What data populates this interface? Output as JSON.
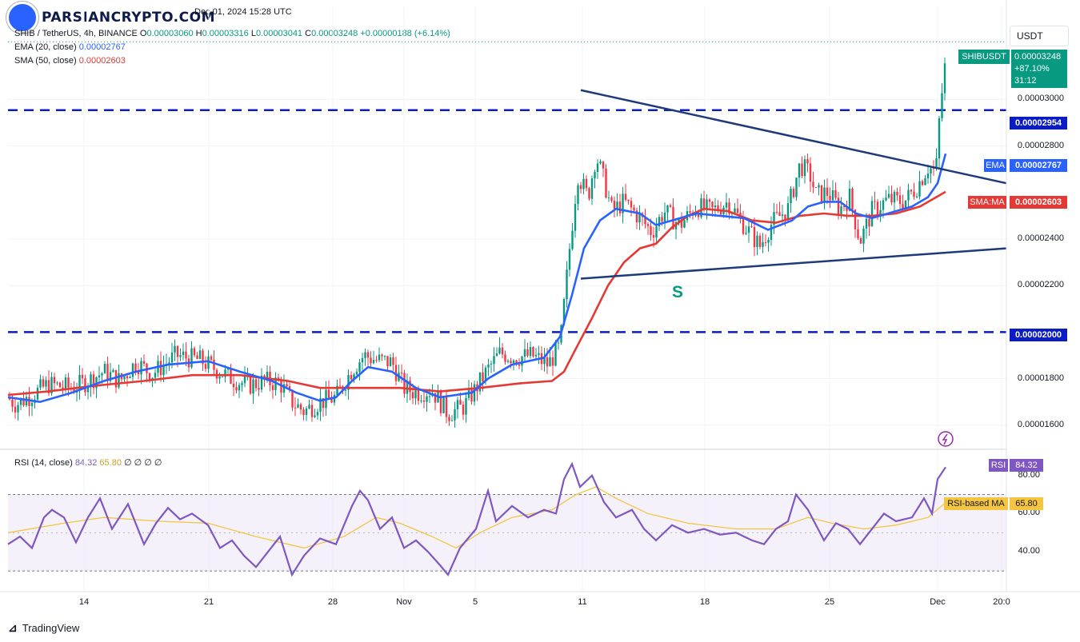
{
  "watermark": {
    "brand": "PARSIANCRYPTO.COM",
    "date": "Dec 01, 2024 15:28 UTC"
  },
  "legend": {
    "symbol": "SHIB / TetherUS, 4h, BINANCE",
    "o_label": "O",
    "o_value": "0.00003060",
    "h_label": "H",
    "h_value": "0.00003316",
    "l_label": "L",
    "l_value": "0.00003041",
    "c_label": "C",
    "c_value": "0.00003248",
    "change": "+0.00000188 (+6.14%)",
    "ema_label": "EMA (20, close)",
    "ema_value": "0.00002767",
    "sma_label": "SMA (50, close)",
    "sma_value": "0.00002603",
    "rsi_label": "RSI (14, close)",
    "rsi_value": "84.32",
    "rsi_ma_value": "65.80",
    "rsi_extra": "∅ ∅ ∅ ∅"
  },
  "currency_button": "USDT",
  "price_box": {
    "symbol": "SHIBUSDT",
    "price": "0.00003248",
    "change": "+87.10%",
    "countdown": "31:12"
  },
  "level_labels": {
    "resistance": "0.00002954",
    "support": "0.00002000"
  },
  "ema_tag": {
    "label": "EMA",
    "value": "0.00002767"
  },
  "sma_tag": {
    "label": "SMA:MA",
    "value": "0.00002603"
  },
  "rsi_tag": {
    "label": "RSI",
    "value": "84.32"
  },
  "rsi_ma_tag": {
    "label": "RSI-based MA",
    "value": "65.80"
  },
  "annotation": "S",
  "footer": "TradingView",
  "colors": {
    "up": "#089981",
    "down": "#f23645",
    "ema": "#2962ff",
    "sma": "#e53935",
    "rsi": "#7e57c2",
    "rsi_ma": "#f5c542",
    "level": "#0a1cc2",
    "trend": "#1f3a7a"
  },
  "chart_data": {
    "type": "candlestick",
    "x_ticks": [
      "14",
      "21",
      "28",
      "Nov",
      "5",
      "11",
      "18",
      "25",
      "Dec",
      "20:0"
    ],
    "y_ticks": [
      "0.00003000",
      "0.00002800",
      "0.00002400",
      "0.00002200",
      "0.00001800",
      "0.00001600"
    ],
    "rsi_ticks": [
      "80.00",
      "60.00",
      "40.00"
    ],
    "ylim": [
      1.51e-05,
      3.4e-05
    ],
    "rsi_ylim": [
      20,
      92
    ],
    "horizontal_levels": [
      2.954e-05,
      2e-05
    ],
    "rsi_band": [
      70,
      30
    ],
    "close_path": [
      [
        0,
        1.745e-05
      ],
      [
        20,
        1.69e-05
      ],
      [
        40,
        1.73e-05
      ],
      [
        60,
        1.775e-05
      ],
      [
        90,
        1.76e-05
      ],
      [
        110,
        1.79e-05
      ],
      [
        130,
        1.83e-05
      ],
      [
        150,
        1.79e-05
      ],
      [
        170,
        1.87e-05
      ],
      [
        190,
        1.82e-05
      ],
      [
        220,
        1.9e-05
      ],
      [
        250,
        1.88e-05
      ],
      [
        270,
        1.84e-05
      ],
      [
        290,
        1.8e-05
      ],
      [
        310,
        1.77e-05
      ],
      [
        330,
        1.79e-05
      ],
      [
        350,
        1.78e-05
      ],
      [
        365,
        1.7e-05
      ],
      [
        380,
        1.66e-05
      ],
      [
        400,
        1.7e-05
      ],
      [
        420,
        1.72e-05
      ],
      [
        440,
        1.84e-05
      ],
      [
        455,
        1.9e-05
      ],
      [
        470,
        1.88e-05
      ],
      [
        490,
        1.87e-05
      ],
      [
        505,
        1.76e-05
      ],
      [
        520,
        1.74e-05
      ],
      [
        540,
        1.75e-05
      ],
      [
        560,
        1.65e-05
      ],
      [
        580,
        1.68e-05
      ],
      [
        595,
        1.76e-05
      ],
      [
        610,
        1.84e-05
      ],
      [
        625,
        1.91e-05
      ],
      [
        645,
        1.89e-05
      ],
      [
        665,
        1.9e-05
      ],
      [
        685,
        1.86e-05
      ],
      [
        700,
        1.94e-05
      ],
      [
        712,
        2.36e-05
      ],
      [
        722,
        2.68e-05
      ],
      [
        735,
        2.58e-05
      ],
      [
        745,
        2.76e-05
      ],
      [
        755,
        2.65e-05
      ],
      [
        765,
        2.52e-05
      ],
      [
        780,
        2.56e-05
      ],
      [
        800,
        2.49e-05
      ],
      [
        815,
        2.43e-05
      ],
      [
        830,
        2.52e-05
      ],
      [
        850,
        2.46e-05
      ],
      [
        870,
        2.54e-05
      ],
      [
        890,
        2.52e-05
      ],
      [
        910,
        2.56e-05
      ],
      [
        930,
        2.46e-05
      ],
      [
        950,
        2.37e-05
      ],
      [
        965,
        2.47e-05
      ],
      [
        985,
        2.53e-05
      ],
      [
        1000,
        2.72e-05
      ],
      [
        1012,
        2.68e-05
      ],
      [
        1020,
        2.59e-05
      ],
      [
        1035,
        2.6e-05
      ],
      [
        1050,
        2.53e-05
      ],
      [
        1062,
        2.58e-05
      ],
      [
        1075,
        2.39e-05
      ],
      [
        1090,
        2.52e-05
      ],
      [
        1110,
        2.57e-05
      ],
      [
        1130,
        2.56e-05
      ],
      [
        1145,
        2.62e-05
      ],
      [
        1160,
        2.71e-05
      ],
      [
        1170,
        2.69e-05
      ],
      [
        1175,
        2.96e-05
      ],
      [
        1180,
        3.1e-05
      ],
      [
        1184,
        3.248e-05
      ]
    ],
    "ema_path": [
      [
        10,
        1.72e-05
      ],
      [
        50,
        1.7e-05
      ],
      [
        90,
        1.74e-05
      ],
      [
        130,
        1.79e-05
      ],
      [
        170,
        1.83e-05
      ],
      [
        210,
        1.86e-05
      ],
      [
        260,
        1.875e-05
      ],
      [
        300,
        1.83e-05
      ],
      [
        340,
        1.79e-05
      ],
      [
        370,
        1.74e-05
      ],
      [
        400,
        1.705e-05
      ],
      [
        420,
        1.72e-05
      ],
      [
        440,
        1.79e-05
      ],
      [
        460,
        1.85e-05
      ],
      [
        490,
        1.83e-05
      ],
      [
        520,
        1.76e-05
      ],
      [
        550,
        1.72e-05
      ],
      [
        590,
        1.74e-05
      ],
      [
        610,
        1.8e-05
      ],
      [
        640,
        1.86e-05
      ],
      [
        680,
        1.89e-05
      ],
      [
        700,
        1.98e-05
      ],
      [
        715,
        2.16e-05
      ],
      [
        730,
        2.36e-05
      ],
      [
        750,
        2.48e-05
      ],
      [
        770,
        2.53e-05
      ],
      [
        800,
        2.51e-05
      ],
      [
        820,
        2.46e-05
      ],
      [
        840,
        2.48e-05
      ],
      [
        870,
        2.51e-05
      ],
      [
        900,
        2.5e-05
      ],
      [
        930,
        2.49e-05
      ],
      [
        960,
        2.44e-05
      ],
      [
        990,
        2.48e-05
      ],
      [
        1010,
        2.54e-05
      ],
      [
        1030,
        2.56e-05
      ],
      [
        1050,
        2.56e-05
      ],
      [
        1070,
        2.51e-05
      ],
      [
        1090,
        2.49e-05
      ],
      [
        1110,
        2.51e-05
      ],
      [
        1140,
        2.54e-05
      ],
      [
        1160,
        2.58e-05
      ],
      [
        1172,
        2.64e-05
      ],
      [
        1182,
        2.767e-05
      ]
    ],
    "sma_path": [
      [
        10,
        1.73e-05
      ],
      [
        60,
        1.745e-05
      ],
      [
        120,
        1.77e-05
      ],
      [
        180,
        1.79e-05
      ],
      [
        240,
        1.815e-05
      ],
      [
        300,
        1.815e-05
      ],
      [
        360,
        1.79e-05
      ],
      [
        400,
        1.76e-05
      ],
      [
        450,
        1.76e-05
      ],
      [
        500,
        1.76e-05
      ],
      [
        550,
        1.745e-05
      ],
      [
        600,
        1.76e-05
      ],
      [
        650,
        1.78e-05
      ],
      [
        690,
        1.79e-05
      ],
      [
        705,
        1.83e-05
      ],
      [
        720,
        1.93e-05
      ],
      [
        740,
        2.06e-05
      ],
      [
        760,
        2.2e-05
      ],
      [
        780,
        2.3e-05
      ],
      [
        800,
        2.36e-05
      ],
      [
        820,
        2.38e-05
      ],
      [
        840,
        2.45e-05
      ],
      [
        860,
        2.5e-05
      ],
      [
        880,
        2.53e-05
      ],
      [
        910,
        2.52e-05
      ],
      [
        940,
        2.48e-05
      ],
      [
        970,
        2.47e-05
      ],
      [
        1000,
        2.5e-05
      ],
      [
        1030,
        2.51e-05
      ],
      [
        1060,
        2.5e-05
      ],
      [
        1090,
        2.5e-05
      ],
      [
        1120,
        2.51e-05
      ],
      [
        1150,
        2.54e-05
      ],
      [
        1182,
        2.603e-05
      ]
    ],
    "trend_lines": [
      {
        "name": "upper",
        "points": [
          [
            726,
            3.04e-05
          ],
          [
            1258,
            2.64e-05
          ]
        ]
      },
      {
        "name": "lower",
        "points": [
          [
            726,
            2.23e-05
          ],
          [
            1258,
            2.36e-05
          ]
        ]
      }
    ],
    "rsi_path": [
      [
        10,
        44
      ],
      [
        25,
        48
      ],
      [
        40,
        42
      ],
      [
        55,
        58
      ],
      [
        65,
        62
      ],
      [
        80,
        58
      ],
      [
        95,
        45
      ],
      [
        110,
        58
      ],
      [
        125,
        68
      ],
      [
        140,
        52
      ],
      [
        160,
        65
      ],
      [
        180,
        44
      ],
      [
        195,
        55
      ],
      [
        210,
        63
      ],
      [
        225,
        57
      ],
      [
        240,
        60
      ],
      [
        260,
        54
      ],
      [
        275,
        42
      ],
      [
        290,
        46
      ],
      [
        305,
        38
      ],
      [
        320,
        32
      ],
      [
        335,
        40
      ],
      [
        350,
        48
      ],
      [
        365,
        28
      ],
      [
        380,
        38
      ],
      [
        400,
        47
      ],
      [
        420,
        44
      ],
      [
        440,
        64
      ],
      [
        450,
        72
      ],
      [
        460,
        67
      ],
      [
        475,
        52
      ],
      [
        490,
        58
      ],
      [
        505,
        42
      ],
      [
        520,
        46
      ],
      [
        535,
        40
      ],
      [
        550,
        33
      ],
      [
        560,
        28
      ],
      [
        575,
        42
      ],
      [
        595,
        52
      ],
      [
        610,
        72
      ],
      [
        620,
        56
      ],
      [
        640,
        64
      ],
      [
        660,
        58
      ],
      [
        680,
        62
      ],
      [
        695,
        60
      ],
      [
        705,
        78
      ],
      [
        715,
        86
      ],
      [
        725,
        74
      ],
      [
        740,
        80
      ],
      [
        755,
        66
      ],
      [
        770,
        58
      ],
      [
        790,
        62
      ],
      [
        805,
        52
      ],
      [
        820,
        46
      ],
      [
        840,
        54
      ],
      [
        860,
        50
      ],
      [
        880,
        52
      ],
      [
        900,
        49
      ],
      [
        920,
        50
      ],
      [
        940,
        46
      ],
      [
        955,
        44
      ],
      [
        970,
        52
      ],
      [
        985,
        56
      ],
      [
        995,
        70
      ],
      [
        1010,
        62
      ],
      [
        1020,
        54
      ],
      [
        1030,
        46
      ],
      [
        1045,
        55
      ],
      [
        1060,
        52
      ],
      [
        1075,
        44
      ],
      [
        1090,
        52
      ],
      [
        1105,
        60
      ],
      [
        1120,
        56
      ],
      [
        1140,
        58
      ],
      [
        1155,
        68
      ],
      [
        1165,
        60
      ],
      [
        1172,
        78
      ],
      [
        1182,
        84.32
      ]
    ],
    "rsi_ma_path": [
      [
        10,
        50
      ],
      [
        80,
        55
      ],
      [
        130,
        58
      ],
      [
        200,
        56
      ],
      [
        260,
        55
      ],
      [
        320,
        48
      ],
      [
        380,
        42
      ],
      [
        430,
        48
      ],
      [
        470,
        58
      ],
      [
        500,
        55
      ],
      [
        540,
        48
      ],
      [
        570,
        42
      ],
      [
        600,
        50
      ],
      [
        640,
        58
      ],
      [
        690,
        62
      ],
      [
        720,
        70
      ],
      [
        745,
        74
      ],
      [
        770,
        68
      ],
      [
        810,
        60
      ],
      [
        860,
        55
      ],
      [
        920,
        52
      ],
      [
        970,
        52
      ],
      [
        1010,
        58
      ],
      [
        1040,
        55
      ],
      [
        1080,
        52
      ],
      [
        1120,
        54
      ],
      [
        1160,
        58
      ],
      [
        1182,
        65.8
      ]
    ]
  }
}
